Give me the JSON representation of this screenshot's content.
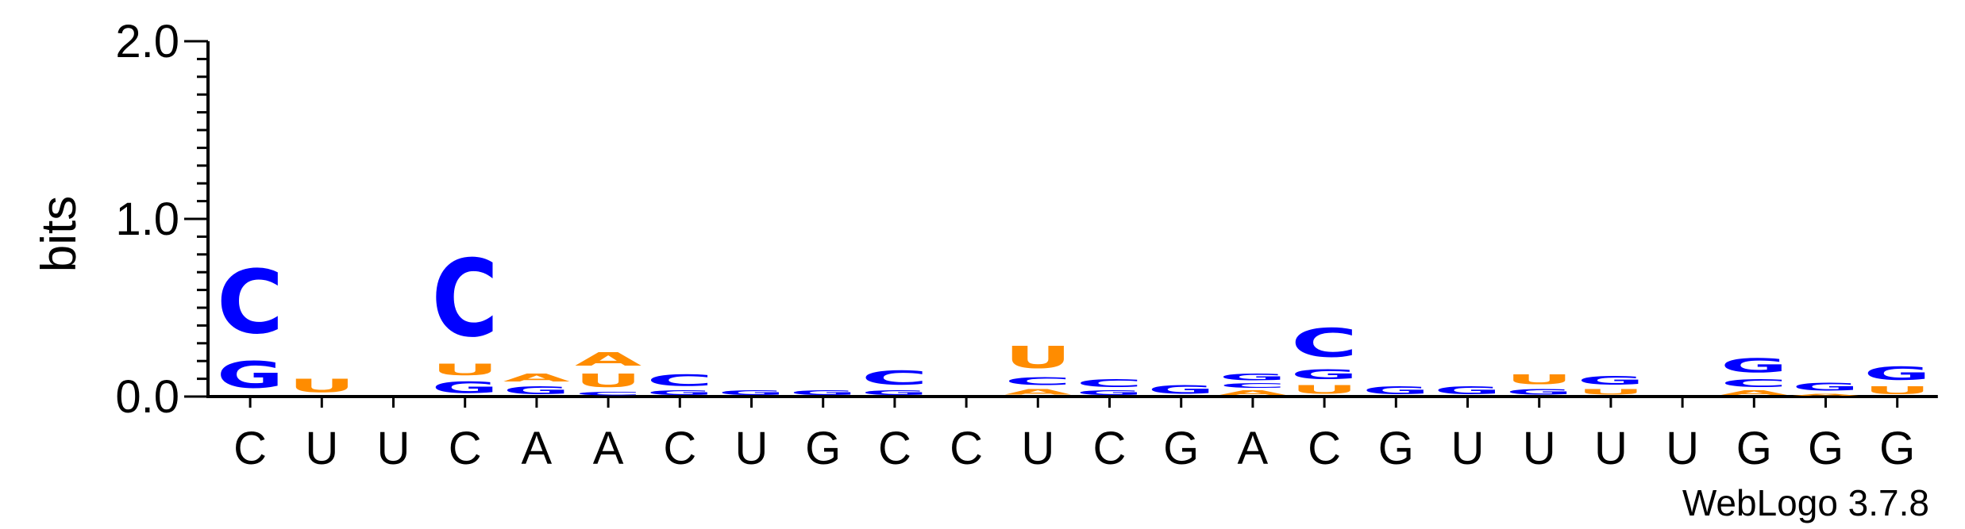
{
  "chart_data": {
    "type": "sequence-logo",
    "ylabel": "bits",
    "ylim": [
      0,
      2.0
    ],
    "yticks": [
      "0.0",
      "1.0",
      "2.0"
    ],
    "credit": "WebLogo 3.7.8",
    "colors": {
      "C": "#0000ff",
      "G": "#0000ff",
      "U": "#ff8c00",
      "A": "#ff8c00"
    },
    "positions": [
      {
        "label": "C",
        "stack": [
          {
            "letter": "G",
            "bits": 0.24
          },
          {
            "letter": "C",
            "bits": 0.58
          }
        ]
      },
      {
        "label": "U",
        "stack": [
          {
            "letter": "U",
            "bits": 0.12
          }
        ]
      },
      {
        "label": "U",
        "stack": []
      },
      {
        "label": "C",
        "stack": [
          {
            "letter": "G",
            "bits": 0.1
          },
          {
            "letter": "U",
            "bits": 0.1
          },
          {
            "letter": "C",
            "bits": 0.7
          }
        ]
      },
      {
        "label": "A",
        "stack": [
          {
            "letter": "G",
            "bits": 0.07
          },
          {
            "letter": "A",
            "bits": 0.07
          }
        ]
      },
      {
        "label": "A",
        "stack": [
          {
            "letter": "C",
            "bits": 0.03
          },
          {
            "letter": "U",
            "bits": 0.12
          },
          {
            "letter": "A",
            "bits": 0.12
          }
        ]
      },
      {
        "label": "C",
        "stack": [
          {
            "letter": "G",
            "bits": 0.04
          },
          {
            "letter": "C",
            "bits": 0.1
          }
        ]
      },
      {
        "label": "U",
        "stack": [
          {
            "letter": "G",
            "bits": 0.04
          }
        ]
      },
      {
        "label": "G",
        "stack": [
          {
            "letter": "G",
            "bits": 0.04
          }
        ]
      },
      {
        "label": "C",
        "stack": [
          {
            "letter": "G",
            "bits": 0.04
          },
          {
            "letter": "C",
            "bits": 0.13
          }
        ]
      },
      {
        "label": "C",
        "stack": []
      },
      {
        "label": "U",
        "stack": [
          {
            "letter": "A",
            "bits": 0.05
          },
          {
            "letter": "C",
            "bits": 0.07
          },
          {
            "letter": "U",
            "bits": 0.2
          }
        ]
      },
      {
        "label": "C",
        "stack": [
          {
            "letter": "G",
            "bits": 0.04
          },
          {
            "letter": "C",
            "bits": 0.07
          }
        ]
      },
      {
        "label": "G",
        "stack": [
          {
            "letter": "G",
            "bits": 0.08
          }
        ]
      },
      {
        "label": "A",
        "stack": [
          {
            "letter": "A",
            "bits": 0.04
          },
          {
            "letter": "C",
            "bits": 0.04
          },
          {
            "letter": "G",
            "bits": 0.06
          }
        ]
      },
      {
        "label": "C",
        "stack": [
          {
            "letter": "U",
            "bits": 0.08
          },
          {
            "letter": "G",
            "bits": 0.09
          },
          {
            "letter": "C",
            "bits": 0.26
          }
        ]
      },
      {
        "label": "G",
        "stack": [
          {
            "letter": "G",
            "bits": 0.07
          }
        ]
      },
      {
        "label": "U",
        "stack": [
          {
            "letter": "G",
            "bits": 0.07
          }
        ]
      },
      {
        "label": "U",
        "stack": [
          {
            "letter": "G",
            "bits": 0.05
          },
          {
            "letter": "U",
            "bits": 0.09
          }
        ]
      },
      {
        "label": "U",
        "stack": [
          {
            "letter": "U",
            "bits": 0.05
          },
          {
            "letter": "G",
            "bits": 0.08
          }
        ]
      },
      {
        "label": "U",
        "stack": []
      },
      {
        "label": "G",
        "stack": [
          {
            "letter": "A",
            "bits": 0.04
          },
          {
            "letter": "C",
            "bits": 0.07
          },
          {
            "letter": "G",
            "bits": 0.13
          }
        ]
      },
      {
        "label": "G",
        "stack": [
          {
            "letter": "A",
            "bits": 0.02
          },
          {
            "letter": "G",
            "bits": 0.07
          }
        ]
      },
      {
        "label": "G",
        "stack": [
          {
            "letter": "U",
            "bits": 0.07
          },
          {
            "letter": "G",
            "bits": 0.12
          }
        ]
      }
    ]
  }
}
